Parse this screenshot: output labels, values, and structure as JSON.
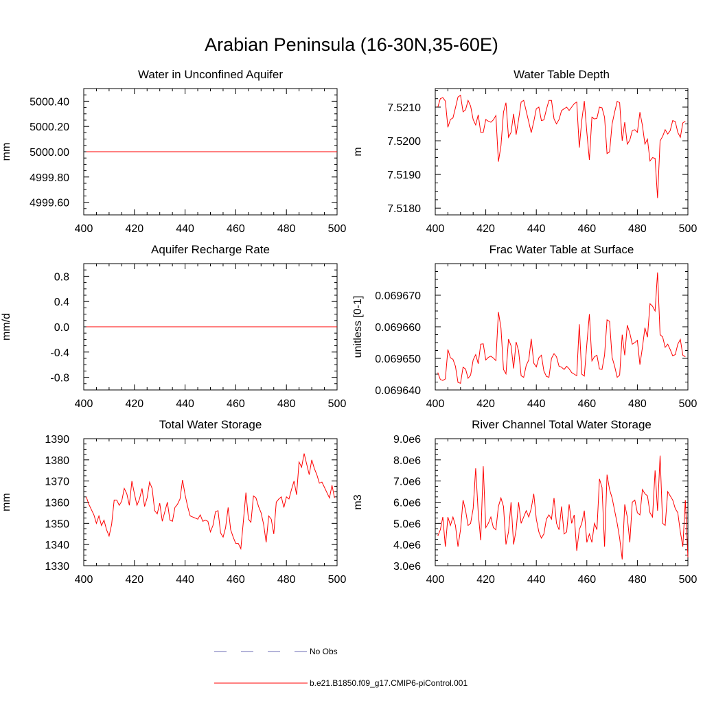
{
  "title": "Arabian Peninsula (16-30N,35-60E)",
  "colors": {
    "series": "#ff0000",
    "obs": "#6b6bb5",
    "axis": "#000000"
  },
  "legend": {
    "position": "bottom-center",
    "entries": [
      {
        "label": "No Obs",
        "style": "dashed",
        "color": "#6b6bb5"
      },
      {
        "label": "b.e21.B1850.f09_g17.CMIP6-piControl.001",
        "style": "solid",
        "color": "#ff0000"
      }
    ]
  },
  "chart_data": [
    {
      "type": "line",
      "title": "Water in Unconfined Aquifer",
      "ylabel": "mm",
      "xlim": [
        400,
        500
      ],
      "ylim": [
        4999.5,
        5000.5
      ],
      "xticks": [
        400,
        420,
        440,
        460,
        480,
        500
      ],
      "yticks": [
        4999.6,
        4999.8,
        5000.0,
        5000.2,
        5000.4
      ],
      "ytick_labels": [
        "4999.60",
        "4999.80",
        "5000.00",
        "5000.20",
        "5000.40"
      ],
      "x": [
        401,
        500
      ],
      "values": [
        5000.0,
        5000.0
      ]
    },
    {
      "type": "line",
      "title": "Water Table Depth",
      "ylabel": "m",
      "xlim": [
        400,
        500
      ],
      "ylim": [
        7.5178,
        7.52155
      ],
      "xticks": [
        400,
        420,
        440,
        460,
        480,
        500
      ],
      "yticks": [
        7.518,
        7.519,
        7.52,
        7.521
      ],
      "ytick_labels": [
        "7.5180",
        "7.5190",
        "7.5200",
        "7.5210"
      ],
      "x_start": 401,
      "values": [
        7.521,
        7.52125,
        7.52128,
        7.52118,
        7.5204,
        7.52063,
        7.52068,
        7.52098,
        7.5213,
        7.52135,
        7.52086,
        7.52092,
        7.5212,
        7.52103,
        7.52063,
        7.52047,
        7.52077,
        7.52025,
        7.52025,
        7.52063,
        7.52058,
        7.52055,
        7.52062,
        7.52075,
        7.51938,
        7.51985,
        7.52085,
        7.52113,
        7.5201,
        7.52025,
        7.5208,
        7.52018,
        7.52063,
        7.52115,
        7.5212,
        7.52088,
        7.52056,
        7.52024,
        7.52057,
        7.52095,
        7.521,
        7.5206,
        7.52062,
        7.52093,
        7.5212,
        7.5212,
        7.52065,
        7.5205,
        7.52063,
        7.5209,
        7.52095,
        7.521,
        7.5209,
        7.521,
        7.5211,
        7.52115,
        7.5198,
        7.5206,
        7.52118,
        7.52025,
        7.51943,
        7.5207,
        7.52065,
        7.52067,
        7.521,
        7.52098,
        7.5207,
        7.51962,
        7.51967,
        7.5205,
        7.52085,
        7.52117,
        7.52113,
        7.52,
        7.52055,
        7.5199,
        7.52002,
        7.5203,
        7.52033,
        7.52025,
        7.52085,
        7.52045,
        7.5199,
        7.52005,
        7.5194,
        7.5195,
        7.51948,
        7.5183,
        7.52,
        7.52013,
        7.52033,
        7.5202,
        7.5203,
        7.5206,
        7.52057,
        7.52025,
        7.5201,
        7.52053,
        7.52058
      ]
    },
    {
      "type": "line",
      "title": "Aquifer Recharge Rate",
      "ylabel": "mm/d",
      "xlim": [
        400,
        500
      ],
      "ylim": [
        -1.0,
        1.0
      ],
      "xticks": [
        400,
        420,
        440,
        460,
        480,
        500
      ],
      "yticks": [
        -0.8,
        -0.4,
        0.0,
        0.4,
        0.8
      ],
      "ytick_labels": [
        "-0.8",
        "-0.4",
        "0.0",
        "0.4",
        "0.8"
      ],
      "x": [
        401,
        500
      ],
      "values": [
        0.0,
        0.0
      ]
    },
    {
      "type": "line",
      "title": "Frac Water Table at Surface",
      "ylabel": "unitless [0-1]",
      "xlim": [
        400,
        500
      ],
      "ylim": [
        0.06964,
        0.06968
      ],
      "xticks": [
        400,
        420,
        440,
        460,
        480,
        500
      ],
      "yticks": [
        0.06964,
        0.06965,
        0.06966,
        0.06967
      ],
      "ytick_labels": [
        "0.069640",
        "0.069650",
        "0.069660",
        "0.069670"
      ],
      "x_start": 401,
      "values": [
        0.0696455,
        0.0696433,
        0.069643,
        0.0696435,
        0.0696528,
        0.0696502,
        0.0696497,
        0.0696475,
        0.0696424,
        0.0696421,
        0.0696472,
        0.0696466,
        0.0696437,
        0.0696447,
        0.0696495,
        0.0696512,
        0.0696483,
        0.0696545,
        0.0696546,
        0.0696495,
        0.0696503,
        0.0696507,
        0.0696501,
        0.0696493,
        0.0696647,
        0.0696597,
        0.0696465,
        0.0696451,
        0.0696561,
        0.069654,
        0.0696468,
        0.0696552,
        0.0696524,
        0.0696445,
        0.069644,
        0.0696478,
        0.0696495,
        0.0696562,
        0.0696485,
        0.0696473,
        0.0696502,
        0.069651,
        0.069646,
        0.0696443,
        0.069644,
        0.06965,
        0.0696515,
        0.0696505,
        0.0696475,
        0.0696472,
        0.0696465,
        0.0696475,
        0.0696467,
        0.0696455,
        0.069645,
        0.0696445,
        0.0696608,
        0.069645,
        0.0696444,
        0.0696545,
        0.069664,
        0.0696492,
        0.0696505,
        0.069651,
        0.0696466,
        0.0696465,
        0.069651,
        0.0696622,
        0.0696617,
        0.0696503,
        0.0696475,
        0.069644,
        0.0696447,
        0.0696575,
        0.069651,
        0.0696605,
        0.069658,
        0.0696545,
        0.069655,
        0.0696557,
        0.069648,
        0.0696535,
        0.0696597,
        0.0696567,
        0.0696673,
        0.0696665,
        0.069665,
        0.0696772,
        0.0696575,
        0.0696568,
        0.0696535,
        0.0696545,
        0.0696528,
        0.0696508,
        0.0696512,
        0.0696545,
        0.069656,
        0.069651,
        0.0696505
      ]
    },
    {
      "type": "line",
      "title": "Total Water Storage",
      "ylabel": "mm",
      "xlim": [
        400,
        500
      ],
      "ylim": [
        1330,
        1390
      ],
      "xticks": [
        400,
        420,
        440,
        460,
        480,
        500
      ],
      "yticks": [
        1330,
        1340,
        1350,
        1360,
        1370,
        1380,
        1390
      ],
      "ytick_labels": [
        "1330",
        "1340",
        "1350",
        "1360",
        "1370",
        "1380",
        "1390"
      ],
      "x_start": 401,
      "values": [
        1362.5,
        1359.0,
        1356.5,
        1354.0,
        1350.0,
        1353.5,
        1349.0,
        1351.5,
        1347.0,
        1344.0,
        1349.5,
        1361.0,
        1361.0,
        1358.5,
        1360.5,
        1366.5,
        1364.0,
        1358.5,
        1370.0,
        1364.0,
        1358.5,
        1361.5,
        1366.5,
        1358.0,
        1362.0,
        1369.5,
        1366.5,
        1356.0,
        1354.5,
        1359.5,
        1351.0,
        1355.5,
        1360.0,
        1351.5,
        1351.0,
        1357.5,
        1359.0,
        1361.5,
        1370.5,
        1363.5,
        1358.0,
        1353.5,
        1353.0,
        1352.5,
        1352.0,
        1354.0,
        1351.0,
        1351.5,
        1351.0,
        1346.0,
        1349.0,
        1355.5,
        1356.0,
        1345.5,
        1343.5,
        1348.0,
        1357.5,
        1347.0,
        1343.5,
        1340.5,
        1340.5,
        1338.0,
        1351.0,
        1364.5,
        1352.0,
        1350.5,
        1363.0,
        1362.0,
        1358.0,
        1355.0,
        1349.5,
        1341.0,
        1353.5,
        1352.0,
        1345.0,
        1360.0,
        1361.5,
        1362.5,
        1357.5,
        1362.5,
        1361.5,
        1366.0,
        1370.0,
        1363.5,
        1379.0,
        1376.5,
        1383.0,
        1378.0,
        1373.0,
        1380.0,
        1376.0,
        1373.0,
        1369.0,
        1369.5,
        1367.0,
        1364.5,
        1362.0,
        1368.0,
        1362.0
      ]
    },
    {
      "type": "line",
      "title": "River Channel Total Water Storage",
      "ylabel": "m3",
      "xlim": [
        400,
        500
      ],
      "ylim": [
        3000000,
        9000000
      ],
      "xticks": [
        400,
        420,
        440,
        460,
        480,
        500
      ],
      "yticks": [
        3000000,
        4000000,
        5000000,
        6000000,
        7000000,
        8000000,
        9000000
      ],
      "ytick_labels": [
        "3.0e6",
        "4.0e6",
        "5.0e6",
        "6.0e6",
        "7.0e6",
        "8.0e6",
        "9.0e6"
      ],
      "x_start": 401,
      "values": [
        4400000,
        4700000,
        5300000,
        3900000,
        5300000,
        4900000,
        5300000,
        4900000,
        3900000,
        4700000,
        6100000,
        5600000,
        4900000,
        5000000,
        5700000,
        7600000,
        5500000,
        4200000,
        7700000,
        4800000,
        5000000,
        5300000,
        4800000,
        4700000,
        5800000,
        6200000,
        5800000,
        4000000,
        4600000,
        6000000,
        4000000,
        4700000,
        6000000,
        5000000,
        5300000,
        5600000,
        5300000,
        5700000,
        6400000,
        5200000,
        4600000,
        4300000,
        4500000,
        5200000,
        5400000,
        5200000,
        6200000,
        5000000,
        4700000,
        5800000,
        4500000,
        4600000,
        5900000,
        5000000,
        5400000,
        3700000,
        4700000,
        5000000,
        5600000,
        4100000,
        4500000,
        4100000,
        5000000,
        4700000,
        7100000,
        6700000,
        3900000,
        7300000,
        6600000,
        6200000,
        5600000,
        5000000,
        4300000,
        3300000,
        5900000,
        5300000,
        4100000,
        6000000,
        6100000,
        5500000,
        5400000,
        6600000,
        6400000,
        6300000,
        5500000,
        5300000,
        7500000,
        5600000,
        8200000,
        5000000,
        4900000,
        6500000,
        6300000,
        6100000,
        5700000,
        5500000,
        4600000,
        3900000,
        6100000,
        3400000
      ]
    }
  ]
}
